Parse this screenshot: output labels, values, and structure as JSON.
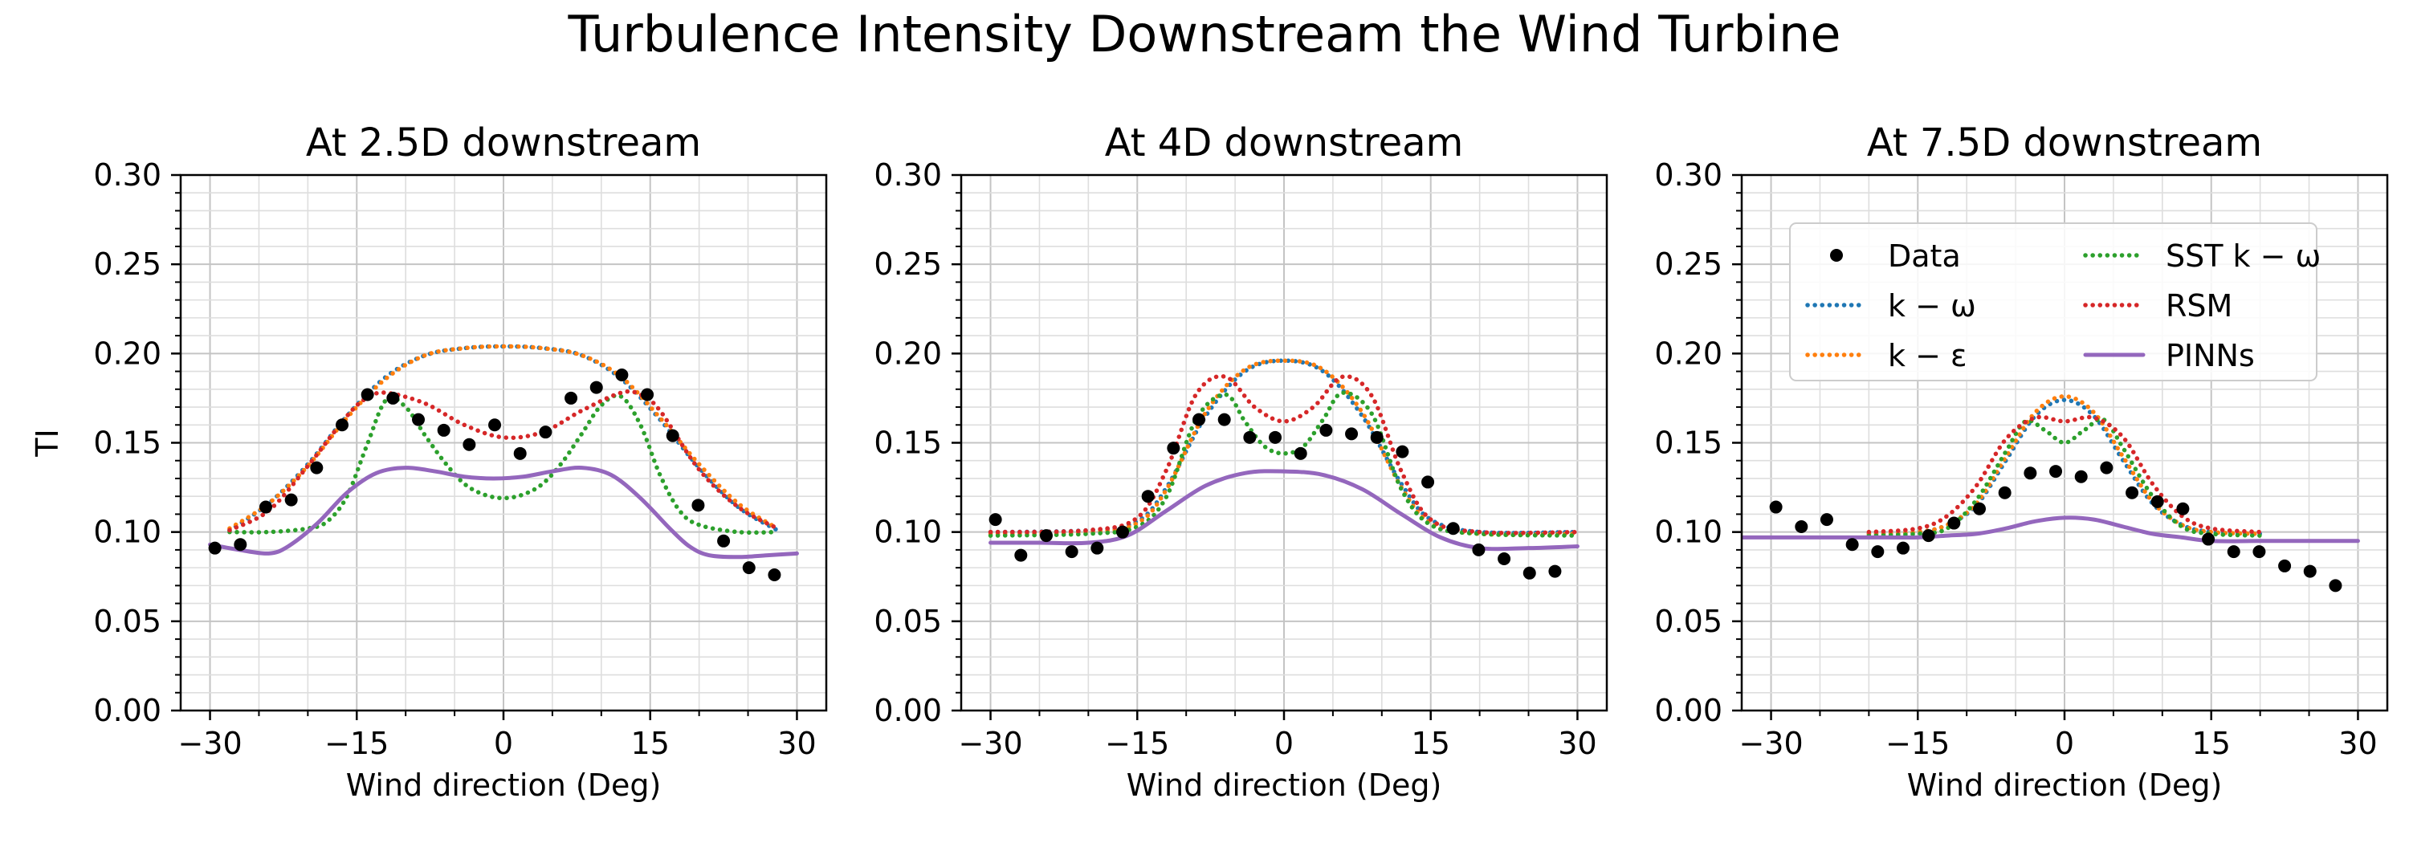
{
  "figure": {
    "title": "Turbulence Intensity Downstream the Wind Turbine"
  },
  "legend": {
    "placement": "upper center of third panel",
    "entries": [
      {
        "key": "data",
        "label": "Data",
        "style": "marker",
        "color": "#000000"
      },
      {
        "key": "kw",
        "label": "k − ω",
        "style": "dotted",
        "color": "#1f77b4"
      },
      {
        "key": "ke",
        "label": "k − ε",
        "style": "dotted",
        "color": "#ff7f0e"
      },
      {
        "key": "sst",
        "label": "SST k − ω",
        "style": "dotted",
        "color": "#2ca02c"
      },
      {
        "key": "rsm",
        "label": "RSM",
        "style": "dotted",
        "color": "#d62728"
      },
      {
        "key": "pinns",
        "label": "PINNs",
        "style": "solid",
        "color": "#9467bd"
      }
    ]
  },
  "chart_data": [
    {
      "type": "line",
      "title": "At 2.5D downstream",
      "xlabel": "Wind direction (Deg)",
      "ylabel": "TI",
      "xlim": [
        -33,
        33
      ],
      "ylim": [
        0,
        0.3
      ],
      "xticks": [
        -30,
        -15,
        0,
        15,
        30
      ],
      "xtick_labels": [
        "−30",
        "−15",
        "0",
        "15",
        "30"
      ],
      "yticks": [
        0,
        0.05,
        0.1,
        0.15,
        0.2,
        0.25,
        0.3
      ],
      "ytick_labels": [
        "0.00",
        "0.05",
        "0.10",
        "0.15",
        "0.20",
        "0.25",
        "0.30"
      ],
      "grid": true,
      "scatter": {
        "name": "Data",
        "x": [
          -29.5,
          -26.9,
          -24.3,
          -21.7,
          -19.1,
          -16.5,
          -13.9,
          -11.3,
          -8.7,
          -6.1,
          -3.5,
          -0.9,
          1.7,
          4.3,
          6.9,
          9.5,
          12.1,
          14.7,
          17.3,
          19.9,
          22.5,
          25.1,
          27.7
        ],
        "y": [
          0.091,
          0.093,
          0.114,
          0.118,
          0.136,
          0.16,
          0.177,
          0.175,
          0.163,
          0.157,
          0.149,
          0.16,
          0.144,
          0.156,
          0.175,
          0.181,
          0.188,
          0.177,
          0.154,
          0.115,
          0.095,
          0.08,
          0.076
        ]
      },
      "series": [
        {
          "name": "k − ω",
          "x": [
            -28,
            -24,
            -20,
            -16,
            -12,
            -8,
            -4,
            0,
            4,
            8,
            12,
            16,
            20,
            24,
            28
          ],
          "y": [
            0.101,
            0.116,
            0.138,
            0.165,
            0.187,
            0.199,
            0.203,
            0.204,
            0.203,
            0.199,
            0.186,
            0.163,
            0.136,
            0.114,
            0.101
          ]
        },
        {
          "name": "k − ε",
          "x": [
            -28,
            -24,
            -20,
            -16,
            -12,
            -8,
            -4,
            0,
            4,
            8,
            12,
            16,
            20,
            24,
            28
          ],
          "y": [
            0.102,
            0.116,
            0.137,
            0.164,
            0.186,
            0.199,
            0.203,
            0.204,
            0.203,
            0.199,
            0.187,
            0.164,
            0.138,
            0.116,
            0.102
          ]
        },
        {
          "name": "SST k − ω",
          "x": [
            -28,
            -24,
            -20,
            -18,
            -16,
            -14,
            -12,
            -10,
            -8,
            -6,
            -4,
            -2,
            0,
            2,
            4,
            6,
            8,
            10,
            12,
            14,
            16,
            18,
            20,
            24,
            28
          ],
          "y": [
            0.1,
            0.1,
            0.102,
            0.106,
            0.12,
            0.148,
            0.174,
            0.17,
            0.154,
            0.139,
            0.127,
            0.121,
            0.119,
            0.121,
            0.127,
            0.139,
            0.155,
            0.171,
            0.176,
            0.16,
            0.132,
            0.112,
            0.104,
            0.1,
            0.1
          ]
        },
        {
          "name": "RSM",
          "x": [
            -28,
            -24,
            -20,
            -16,
            -14,
            -12,
            -8,
            -4,
            0,
            4,
            8,
            12,
            14,
            16,
            20,
            24,
            28
          ],
          "y": [
            0.101,
            0.112,
            0.137,
            0.165,
            0.175,
            0.178,
            0.172,
            0.16,
            0.153,
            0.156,
            0.168,
            0.178,
            0.177,
            0.168,
            0.135,
            0.114,
            0.102
          ]
        },
        {
          "name": "PINNs",
          "x": [
            -30,
            -27,
            -24,
            -22,
            -19,
            -16,
            -13,
            -10,
            -7,
            -4,
            -1,
            2,
            5,
            8,
            11,
            14,
            17,
            19,
            21,
            24,
            27,
            30
          ],
          "y": [
            0.093,
            0.09,
            0.088,
            0.092,
            0.105,
            0.122,
            0.133,
            0.136,
            0.134,
            0.131,
            0.13,
            0.131,
            0.134,
            0.136,
            0.132,
            0.119,
            0.102,
            0.092,
            0.087,
            0.086,
            0.087,
            0.088
          ]
        }
      ]
    },
    {
      "type": "line",
      "title": "At 4D downstream",
      "xlabel": "Wind direction (Deg)",
      "ylabel": "",
      "xlim": [
        -33,
        33
      ],
      "ylim": [
        0,
        0.3
      ],
      "xticks": [
        -30,
        -15,
        0,
        15,
        30
      ],
      "xtick_labels": [
        "−30",
        "−15",
        "0",
        "15",
        "30"
      ],
      "yticks": [
        0,
        0.05,
        0.1,
        0.15,
        0.2,
        0.25,
        0.3
      ],
      "ytick_labels": [
        "0.00",
        "0.05",
        "0.10",
        "0.15",
        "0.20",
        "0.25",
        "0.30"
      ],
      "grid": true,
      "scatter": {
        "name": "Data",
        "x": [
          -29.5,
          -26.9,
          -24.3,
          -21.7,
          -19.1,
          -16.5,
          -13.9,
          -11.3,
          -8.7,
          -6.1,
          -3.5,
          -0.9,
          1.7,
          4.3,
          6.9,
          9.5,
          12.1,
          14.7,
          17.3,
          19.9,
          22.5,
          25.1,
          27.7
        ],
        "y": [
          0.107,
          0.087,
          0.098,
          0.089,
          0.091,
          0.1,
          0.12,
          0.147,
          0.163,
          0.163,
          0.153,
          0.153,
          0.144,
          0.157,
          0.155,
          0.153,
          0.145,
          0.128,
          0.102,
          0.09,
          0.085,
          0.077,
          0.078
        ]
      },
      "series": [
        {
          "name": "k − ω",
          "x": [
            -30,
            -20,
            -15,
            -12,
            -8,
            -4,
            0,
            4,
            8,
            12,
            15,
            20,
            30
          ],
          "y": [
            0.1,
            0.101,
            0.106,
            0.125,
            0.165,
            0.19,
            0.196,
            0.19,
            0.165,
            0.127,
            0.107,
            0.1,
            0.1
          ]
        },
        {
          "name": "k − ε",
          "x": [
            -30,
            -20,
            -15,
            -12,
            -8,
            -4,
            0,
            4,
            8,
            12,
            15,
            20,
            30
          ],
          "y": [
            0.099,
            0.1,
            0.105,
            0.124,
            0.167,
            0.191,
            0.196,
            0.191,
            0.167,
            0.125,
            0.105,
            0.099,
            0.099
          ]
        },
        {
          "name": "SST k − ω",
          "x": [
            -30,
            -20,
            -15,
            -12,
            -9,
            -6,
            -4,
            -2,
            0,
            2,
            4,
            6,
            9,
            12,
            15,
            20,
            30
          ],
          "y": [
            0.098,
            0.099,
            0.103,
            0.12,
            0.163,
            0.177,
            0.162,
            0.148,
            0.144,
            0.148,
            0.163,
            0.178,
            0.166,
            0.124,
            0.104,
            0.099,
            0.098
          ]
        },
        {
          "name": "RSM",
          "x": [
            -30,
            -20,
            -15,
            -12,
            -9,
            -6,
            -3,
            0,
            3,
            6,
            9,
            12,
            15,
            20,
            30
          ],
          "y": [
            0.1,
            0.101,
            0.108,
            0.135,
            0.177,
            0.187,
            0.17,
            0.162,
            0.17,
            0.187,
            0.176,
            0.134,
            0.107,
            0.1,
            0.1
          ]
        },
        {
          "name": "PINNs",
          "x": [
            -30,
            -25,
            -20,
            -16,
            -12,
            -8,
            -4,
            0,
            4,
            8,
            12,
            16,
            20,
            25,
            30
          ],
          "y": [
            0.094,
            0.094,
            0.094,
            0.098,
            0.112,
            0.126,
            0.133,
            0.134,
            0.132,
            0.124,
            0.11,
            0.097,
            0.091,
            0.091,
            0.092
          ]
        }
      ]
    },
    {
      "type": "line",
      "title": "At 7.5D downstream",
      "xlabel": "Wind direction (Deg)",
      "ylabel": "",
      "xlim": [
        -33,
        33
      ],
      "ylim": [
        0,
        0.3
      ],
      "xticks": [
        -30,
        -15,
        0,
        15,
        30
      ],
      "xtick_labels": [
        "−30",
        "−15",
        "0",
        "15",
        "30"
      ],
      "yticks": [
        0,
        0.05,
        0.1,
        0.15,
        0.2,
        0.25,
        0.3
      ],
      "ytick_labels": [
        "0.00",
        "0.05",
        "0.10",
        "0.15",
        "0.20",
        "0.25",
        "0.30"
      ],
      "grid": true,
      "scatter": {
        "name": "Data",
        "x": [
          -29.5,
          -26.9,
          -24.3,
          -21.7,
          -19.1,
          -16.5,
          -13.9,
          -11.3,
          -8.7,
          -6.1,
          -3.5,
          -0.9,
          1.7,
          4.3,
          6.9,
          9.5,
          12.1,
          14.7,
          17.3,
          19.9,
          22.5,
          25.1,
          27.7
        ],
        "y": [
          0.114,
          0.103,
          0.107,
          0.093,
          0.089,
          0.091,
          0.098,
          0.105,
          0.113,
          0.122,
          0.133,
          0.134,
          0.131,
          0.136,
          0.122,
          0.117,
          0.113,
          0.096,
          0.089,
          0.089,
          0.081,
          0.078,
          0.07
        ]
      },
      "series": [
        {
          "name": "k − ω",
          "x": [
            -20,
            -15,
            -12,
            -9,
            -6,
            -3,
            0,
            3,
            6,
            9,
            12,
            15,
            20
          ],
          "y": [
            0.099,
            0.1,
            0.104,
            0.115,
            0.14,
            0.165,
            0.174,
            0.165,
            0.14,
            0.116,
            0.104,
            0.1,
            0.099
          ]
        },
        {
          "name": "k − ε",
          "x": [
            -20,
            -15,
            -12,
            -9,
            -6,
            -3,
            0,
            3,
            6,
            9,
            12,
            15,
            20
          ],
          "y": [
            0.099,
            0.1,
            0.104,
            0.116,
            0.142,
            0.167,
            0.176,
            0.167,
            0.142,
            0.117,
            0.104,
            0.1,
            0.099
          ]
        },
        {
          "name": "SST k − ω",
          "x": [
            -20,
            -15,
            -12,
            -9,
            -6,
            -4,
            -2,
            0,
            2,
            4,
            6,
            9,
            12,
            15,
            20
          ],
          "y": [
            0.098,
            0.099,
            0.102,
            0.118,
            0.145,
            0.162,
            0.157,
            0.15,
            0.157,
            0.163,
            0.147,
            0.12,
            0.103,
            0.099,
            0.098
          ]
        },
        {
          "name": "RSM",
          "x": [
            -20,
            -15,
            -12,
            -9,
            -6,
            -3,
            0,
            3,
            6,
            9,
            12,
            15,
            20
          ],
          "y": [
            0.1,
            0.102,
            0.109,
            0.126,
            0.152,
            0.164,
            0.162,
            0.164,
            0.153,
            0.127,
            0.109,
            0.102,
            0.1
          ]
        },
        {
          "name": "PINNs",
          "x": [
            -33,
            -25,
            -20,
            -15,
            -12,
            -9,
            -6,
            -3,
            0,
            3,
            6,
            9,
            12,
            15,
            20,
            25,
            30
          ],
          "y": [
            0.097,
            0.097,
            0.097,
            0.097,
            0.098,
            0.099,
            0.102,
            0.106,
            0.108,
            0.107,
            0.103,
            0.099,
            0.097,
            0.095,
            0.095,
            0.095,
            0.095
          ]
        }
      ]
    }
  ]
}
